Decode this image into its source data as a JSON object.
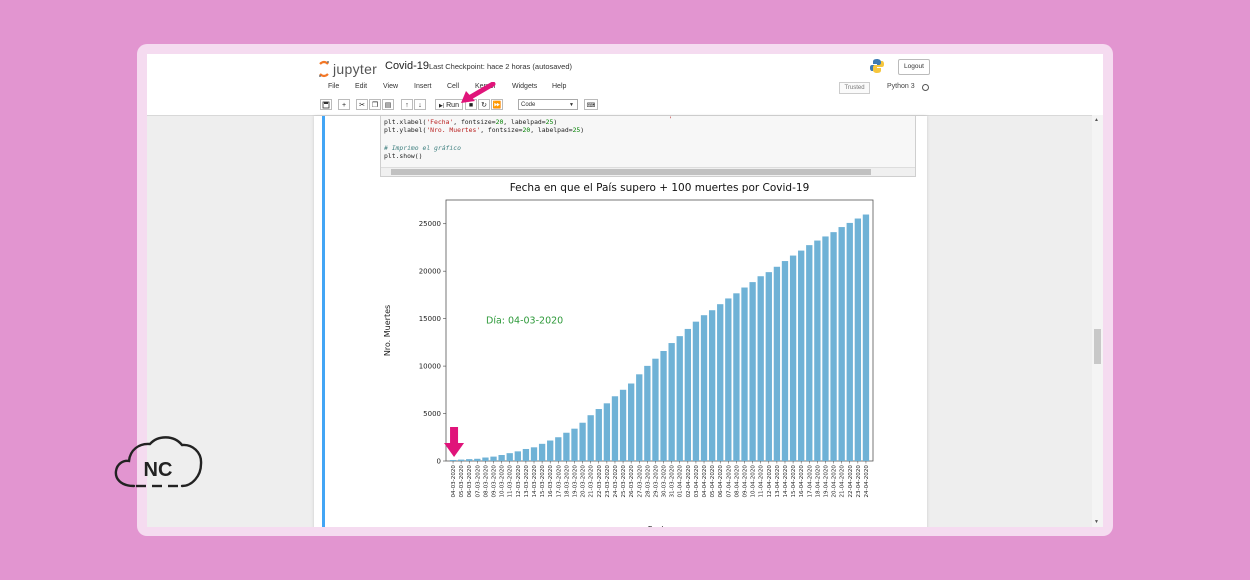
{
  "header": {
    "logo_text": "jupyter",
    "notebook_title": "Covid-19",
    "checkpoint": "Last Checkpoint: hace 2 horas  (autosaved)",
    "logout_label": "Logout"
  },
  "menu": [
    "File",
    "Edit",
    "View",
    "Insert",
    "Cell",
    "Kernel",
    "Widgets",
    "Help"
  ],
  "status": {
    "trusted": "Trusted",
    "kernel": "Python 3"
  },
  "toolbar": {
    "run_label": "Run",
    "cell_type": "Code"
  },
  "code": {
    "line1": {
      "fn": "plt.xlabel(",
      "str": "'Fecha'",
      "mid": ", fontsize=",
      "n1": "20",
      "rest": ", labelpad=",
      "n2": "25",
      "end": ")"
    },
    "line2": {
      "fn": "plt.ylabel(",
      "str": "'Nro. Muertes'",
      "mid": ", fontsize=",
      "n1": "20",
      "rest": ", labelpad=",
      "n2": "25",
      "end": ")"
    },
    "comment": "# Imprimo el gráfico",
    "show": "plt.show()"
  },
  "colors": {
    "background": "#e295d0",
    "bar": "#6fb2d6",
    "annotation": "#2e9a3a",
    "arrow": "#e0147a",
    "cell_selection": "#42a5f5"
  },
  "branding": {
    "text": "NC"
  },
  "chart_data": {
    "type": "bar",
    "title": "Fecha en que el País supero + 100 muertes por Covid-19",
    "xlabel": "Fecha",
    "ylabel": "Nro. Muertes",
    "ylim": [
      0,
      27500
    ],
    "yticks": [
      0,
      5000,
      10000,
      15000,
      20000,
      25000
    ],
    "annotation": "Día: 04-03-2020",
    "categories": [
      "04-03-2020",
      "05-03-2020",
      "06-03-2020",
      "07-03-2020",
      "08-03-2020",
      "09-03-2020",
      "10-03-2020",
      "11-03-2020",
      "12-03-2020",
      "13-03-2020",
      "14-03-2020",
      "15-03-2020",
      "16-03-2020",
      "17-03-2020",
      "18-03-2020",
      "19-03-2020",
      "20-03-2020",
      "21-03-2020",
      "22-03-2020",
      "23-03-2020",
      "24-03-2020",
      "25-03-2020",
      "26-03-2020",
      "27-03-2020",
      "28-03-2020",
      "29-03-2020",
      "30-03-2020",
      "31-03-2020",
      "01-04-2020",
      "02-04-2020",
      "03-04-2020",
      "04-04-2020",
      "05-04-2020",
      "06-04-2020",
      "07-04-2020",
      "08-04-2020",
      "09-04-2020",
      "10-04-2020",
      "11-04-2020",
      "12-04-2020",
      "13-04-2020",
      "14-04-2020",
      "15-04-2020",
      "16-04-2020",
      "17-04-2020",
      "18-04-2020",
      "19-04-2020",
      "20-04-2020",
      "21-04-2020",
      "22-04-2020",
      "23-04-2020",
      "24-04-2020"
    ],
    "values": [
      107,
      148,
      197,
      233,
      366,
      463,
      631,
      827,
      1016,
      1266,
      1441,
      1809,
      2158,
      2503,
      2978,
      3405,
      4032,
      4825,
      5476,
      6077,
      6820,
      7503,
      8165,
      9134,
      10023,
      10779,
      11591,
      12428,
      13155,
      13915,
      14681,
      15362,
      15887,
      16523,
      17127,
      17669,
      18279,
      18849,
      19468,
      19899,
      20465,
      21067,
      21645,
      22170,
      22745,
      23227,
      23660,
      24114,
      24648,
      25085,
      25549,
      25969
    ],
    "grid": false
  }
}
